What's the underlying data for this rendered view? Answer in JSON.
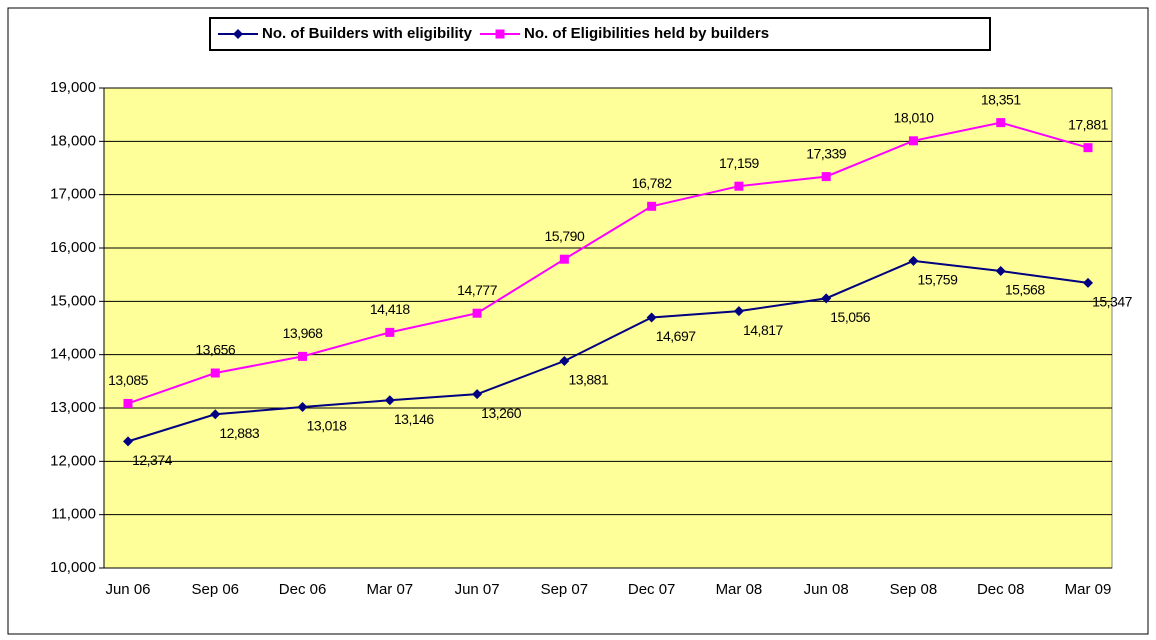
{
  "chart_data": {
    "type": "line",
    "categories": [
      "Jun 06",
      "Sep 06",
      "Dec 06",
      "Mar 07",
      "Jun 07",
      "Sep 07",
      "Dec 07",
      "Mar 08",
      "Jun 08",
      "Sep 08",
      "Dec 08",
      "Mar 09"
    ],
    "series": [
      {
        "name": "No. of Builders with eligibility",
        "color": "#000080",
        "marker": "diamond",
        "values": [
          12374,
          12883,
          13018,
          13146,
          13260,
          13881,
          14697,
          14817,
          15056,
          15759,
          15568,
          15347
        ],
        "value_labels": [
          "12,374",
          "12,883",
          "13,018",
          "13,146",
          "13,260",
          "13,881",
          "14,697",
          "14,817",
          "15,056",
          "15,759",
          "15,568",
          "15,347"
        ]
      },
      {
        "name": "No. of Eligibilities held by builders",
        "color": "#ff00ff",
        "marker": "square",
        "values": [
          13085,
          13656,
          13968,
          14418,
          14777,
          15790,
          16782,
          17159,
          17339,
          18010,
          18351,
          17881
        ],
        "value_labels": [
          "13,085",
          "13,656",
          "13,968",
          "14,418",
          "14,777",
          "15,790",
          "16,782",
          "17,159",
          "17,339",
          "18,010",
          "18,351",
          "17,881"
        ]
      }
    ],
    "ylim": [
      10000,
      19000
    ],
    "yticks": [
      {
        "value": 10000,
        "label": "10,000"
      },
      {
        "value": 11000,
        "label": "11,000"
      },
      {
        "value": 12000,
        "label": "12,000"
      },
      {
        "value": 13000,
        "label": "13,000"
      },
      {
        "value": 14000,
        "label": "14,000"
      },
      {
        "value": 15000,
        "label": "15,000"
      },
      {
        "value": 16000,
        "label": "16,000"
      },
      {
        "value": 17000,
        "label": "17,000"
      },
      {
        "value": 18000,
        "label": "18,000"
      },
      {
        "value": 19000,
        "label": "19,000"
      }
    ],
    "grid": true,
    "legend": "top",
    "plot_background": "#ffff99"
  }
}
